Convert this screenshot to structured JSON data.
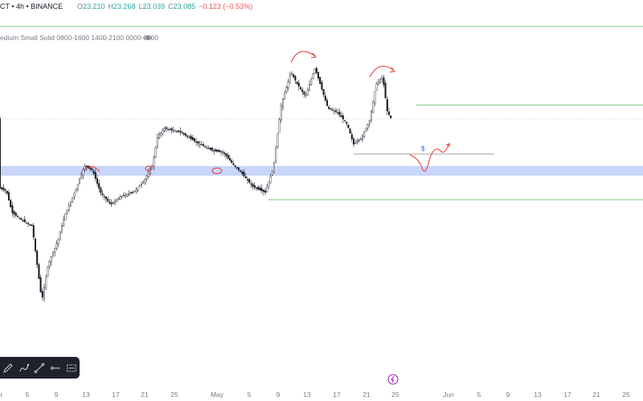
{
  "header": {
    "symbol": "CT • 4h • BINANCE",
    "ohlc": [
      {
        "label": "O",
        "value": "23.210"
      },
      {
        "label": "H",
        "value": "23.268"
      },
      {
        "label": "L",
        "value": "23.039"
      },
      {
        "label": "C",
        "value": "23.085"
      }
    ],
    "change": "−0.123 (−0.53%)"
  },
  "indicator": {
    "text": "edium Small Solid 0800-1600 1400-2100 0000-0900"
  },
  "annotation": {
    "s_label": "$"
  },
  "xaxis": {
    "labels": [
      "r",
      "5",
      "9",
      "13",
      "17",
      "21",
      "25",
      "May",
      "5",
      "9",
      "13",
      "17",
      "21",
      "25",
      "Jun",
      "5",
      "9",
      "13",
      "17",
      "21",
      "25"
    ]
  },
  "colors": {
    "up": "#26a69a",
    "down": "#ef5350",
    "zone": "#c9d6fb",
    "green_line": "#4caf50",
    "gray_line": "#808080",
    "red_drawing": "#e53935",
    "blue_drawing": "#2962ff"
  },
  "toolbar": {
    "icons": [
      "pencil-icon",
      "brush-icon",
      "trendline-icon",
      "horizontal-ray-icon",
      "measure-icon"
    ]
  }
}
